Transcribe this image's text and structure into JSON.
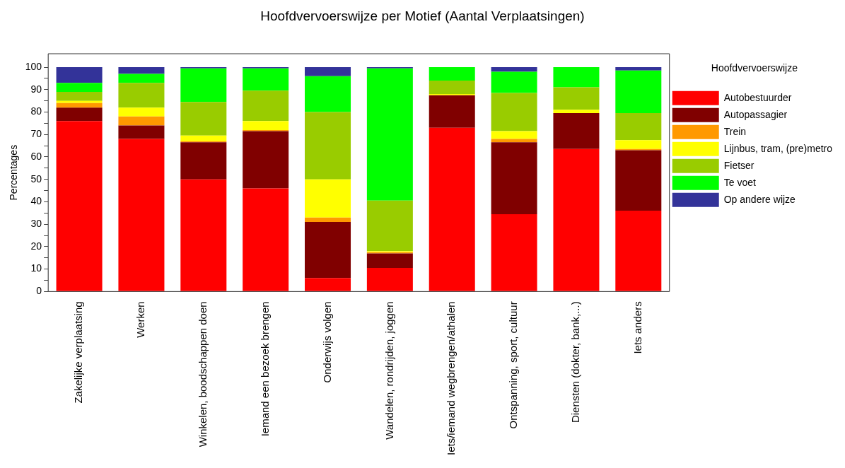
{
  "chart_data": {
    "type": "bar",
    "title": "Hoofdvervoerswijze per Motief (Aantal Verplaatsingen)",
    "ylabel": "Percentages",
    "legend_title": "Hoofdvervoerswijze",
    "categories": [
      "Zakelijke verplaatsing",
      "Werken",
      "Winkelen, boodschappen doen",
      "Iemand een bezoek brengen",
      "Onderwijs volgen",
      "Wandelen, rondrijden, joggen",
      "Iets/iemand wegbrengen/athalen",
      "Ontspanning, sport, cultuur",
      "Diensten (dokter, bank,...)",
      "Iets anders"
    ],
    "stacked": true,
    "legend": "right",
    "grid": false,
    "ylim": [
      0,
      106
    ],
    "yticks": [
      0,
      {
        "value": 5,
        "label": null
      },
      10,
      {
        "value": 15,
        "label": null
      },
      20,
      {
        "value": 25,
        "label": null
      },
      30,
      {
        "value": 35,
        "label": null
      },
      40,
      {
        "value": 45,
        "label": null
      },
      50,
      {
        "value": 55,
        "label": null
      },
      60,
      {
        "value": 65,
        "label": null
      },
      70,
      {
        "value": 75,
        "label": null
      },
      80,
      {
        "value": 85,
        "label": null
      },
      90,
      {
        "value": 95,
        "label": null
      },
      100
    ],
    "series": [
      {
        "name": "Autobestuurder",
        "color": "#ff0000",
        "values": [
          76,
          68,
          50,
          46,
          6,
          10.5,
          73,
          34.5,
          63.5,
          36
        ]
      },
      {
        "name": "Autopassagier",
        "color": "#800000",
        "values": [
          6,
          6,
          16.5,
          25.5,
          25,
          6.5,
          14.5,
          32,
          16,
          27
        ]
      },
      {
        "name": "Trein",
        "color": "#ff9900",
        "values": [
          2,
          4,
          0.5,
          0.5,
          2,
          0.5,
          0,
          1.5,
          0,
          0.5
        ]
      },
      {
        "name": "Lijnbus, tram, (pre)metro",
        "color": "#ffff00",
        "values": [
          1,
          4,
          2.5,
          4,
          17,
          0.5,
          0.5,
          3.5,
          1.5,
          4
        ]
      },
      {
        "name": "Fietser",
        "color": "#99cc00",
        "values": [
          4,
          11,
          15,
          13.5,
          30,
          22.5,
          6,
          17,
          10,
          12
        ]
      },
      {
        "name": "Te voet",
        "color": "#00ff00",
        "values": [
          4,
          4,
          15,
          10,
          16,
          59,
          6,
          9.5,
          9,
          19
        ]
      },
      {
        "name": "Op andere wijze",
        "color": "#333399",
        "values": [
          7,
          3,
          0.5,
          0.5,
          4,
          0.5,
          0,
          2,
          0,
          1.5
        ]
      }
    ]
  }
}
